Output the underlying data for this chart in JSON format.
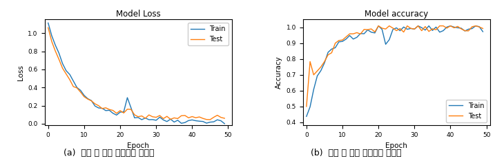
{
  "loss_title": "Model Loss",
  "acc_title": "Model accuracy",
  "xlabel": "Epoch",
  "loss_ylabel": "Loss",
  "acc_ylabel": "Accuracy",
  "caption_left": "(a)  훈련 및 검증 데이터의 손실률",
  "caption_right": "(b)  훈련 및 검증 데이터의 정확도",
  "train_color": "#1f77b4",
  "test_color": "#ff7f0e",
  "epochs": 50,
  "loss_ylim": [
    -0.02,
    1.15
  ],
  "acc_ylim": [
    0.38,
    1.05
  ],
  "loss_yticks": [
    0.0,
    0.2,
    0.4,
    0.6,
    0.8,
    1.0
  ],
  "acc_yticks": [
    0.4,
    0.5,
    0.6,
    0.7,
    0.8,
    0.9,
    1.0
  ],
  "figsize": [
    7.17,
    2.37
  ],
  "dpi": 100
}
